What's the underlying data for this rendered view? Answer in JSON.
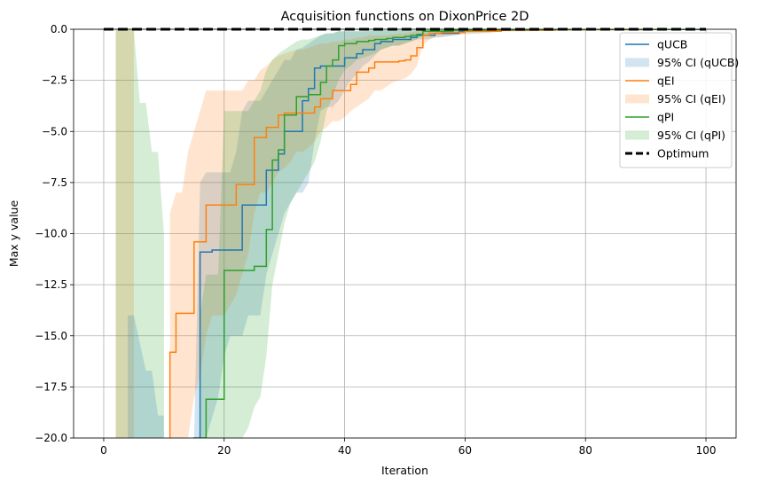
{
  "chart_data": {
    "type": "line",
    "title": "Acquisition functions on DixonPrice 2D",
    "xlabel": "Iteration",
    "ylabel": "Max y value",
    "xlim": [
      -5,
      105
    ],
    "ylim": [
      -20,
      0
    ],
    "xticks": [
      0,
      20,
      40,
      60,
      80,
      100
    ],
    "yticks": [
      -20.0,
      -17.5,
      -15.0,
      -12.5,
      -10.0,
      -7.5,
      -5.0,
      -2.5,
      0.0
    ],
    "ytick_labels": [
      "−20.0",
      "−17.5",
      "−15.0",
      "−12.5",
      "−10.0",
      "−7.5",
      "−5.0",
      "−2.5",
      "0.0"
    ],
    "xtick_labels": [
      "0",
      "20",
      "40",
      "60",
      "80",
      "100"
    ],
    "grid": true,
    "legend_position": "top-right",
    "series": [
      {
        "name": "qUCB",
        "ci_name": "95% CI (qUCB)",
        "color": "#1f77b4",
        "x": [
          15,
          16,
          17,
          18,
          19,
          20,
          21,
          22,
          23,
          24,
          25,
          26,
          27,
          28,
          29,
          30,
          31,
          32,
          33,
          34,
          35,
          36,
          37,
          38,
          39,
          40,
          41,
          42,
          43,
          44,
          45,
          46,
          47,
          48,
          49,
          50,
          51,
          52,
          53,
          54,
          55,
          56,
          57,
          58,
          59,
          60,
          62,
          64,
          66,
          68,
          70,
          72,
          75,
          80,
          85,
          90,
          95,
          99
        ],
        "y": [
          -20,
          -10.9,
          -10.9,
          -10.8,
          -10.8,
          -10.8,
          -10.8,
          -10.8,
          -8.6,
          -8.6,
          -8.6,
          -8.6,
          -6.9,
          -6.9,
          -6.1,
          -5.0,
          -5.0,
          -5.0,
          -3.5,
          -2.9,
          -1.9,
          -1.8,
          -1.8,
          -1.8,
          -1.8,
          -1.4,
          -1.4,
          -1.2,
          -1.0,
          -1.0,
          -0.7,
          -0.6,
          -0.6,
          -0.5,
          -0.5,
          -0.5,
          -0.4,
          -0.3,
          -0.3,
          -0.3,
          -0.2,
          -0.2,
          -0.2,
          -0.2,
          -0.1,
          -0.1,
          -0.1,
          -0.05,
          -0.05,
          -0.05,
          -0.05,
          -0.03,
          -0.02,
          -0.01,
          -0.01,
          -0.01,
          -0.01,
          -0.01
        ],
        "ci_lower": [
          -20,
          -20,
          -20,
          -19,
          -18,
          -16,
          -15,
          -15,
          -15,
          -14,
          -14,
          -14,
          -12,
          -11,
          -10,
          -9,
          -8.5,
          -8,
          -8,
          -7.5,
          -5.5,
          -4,
          -3.8,
          -3.8,
          -3.5,
          -3,
          -2.5,
          -2.2,
          -1.8,
          -1.6,
          -1.3,
          -1.0,
          -0.9,
          -0.8,
          -0.8,
          -0.7,
          -0.6,
          -0.5,
          -0.5,
          -0.5,
          -0.4,
          -0.4,
          -0.35,
          -0.3,
          -0.25,
          -0.2,
          -0.2,
          -0.15,
          -0.1,
          -0.1,
          -0.1,
          -0.08,
          -0.05,
          -0.03,
          -0.02,
          -0.02,
          -0.02,
          -0.02
        ],
        "ci_upper": [
          -20,
          -7.5,
          -7,
          -7,
          -7,
          -7,
          -7,
          -6,
          -4,
          -3.5,
          -3.5,
          -3.5,
          -3,
          -2.5,
          -2.0,
          -1.5,
          -1.5,
          -1.0,
          -0.9,
          -0.7,
          -0.5,
          -0.3,
          -0.2,
          -0.2,
          -0.1,
          -0.1,
          -0.1,
          -0.1,
          -0.1,
          -0.05,
          -0.05,
          -0.05,
          -0.05,
          -0.05,
          -0.05,
          -0.05,
          -0.05,
          -0.05,
          -0.05,
          -0.05,
          -0.03,
          -0.03,
          -0.03,
          -0.03,
          -0.03,
          -0.02,
          -0.02,
          -0.02,
          -0.02,
          -0.02,
          -0.02,
          -0.01,
          -0.01,
          -0.01,
          -0.01,
          -0.01,
          -0.01,
          -0.01
        ]
      },
      {
        "name": "qEI",
        "ci_name": "95% CI (qEI)",
        "color": "#ff7f0e",
        "x": [
          11,
          12,
          13,
          14,
          15,
          16,
          17,
          18,
          19,
          20,
          21,
          22,
          23,
          24,
          25,
          26,
          27,
          28,
          29,
          30,
          31,
          32,
          33,
          34,
          35,
          36,
          37,
          38,
          39,
          40,
          41,
          42,
          43,
          44,
          45,
          46,
          47,
          48,
          49,
          50,
          51,
          52,
          53,
          54,
          55,
          56,
          58,
          60,
          62,
          64,
          66,
          68,
          70,
          75,
          80,
          85,
          90,
          95,
          99
        ],
        "y": [
          -15.8,
          -13.9,
          -13.9,
          -13.9,
          -10.4,
          -10.4,
          -8.6,
          -8.6,
          -8.6,
          -8.6,
          -8.6,
          -7.6,
          -7.6,
          -7.6,
          -5.3,
          -5.3,
          -4.8,
          -4.8,
          -4.2,
          -4.1,
          -4.1,
          -4.1,
          -4.1,
          -4.1,
          -3.8,
          -3.4,
          -3.4,
          -3.0,
          -3.0,
          -3.0,
          -2.7,
          -2.1,
          -2.1,
          -1.9,
          -1.6,
          -1.6,
          -1.6,
          -1.6,
          -1.55,
          -1.5,
          -1.3,
          -0.9,
          -0.3,
          -0.2,
          -0.2,
          -0.15,
          -0.15,
          -0.1,
          -0.1,
          -0.1,
          -0.05,
          -0.05,
          -0.05,
          -0.03,
          -0.02,
          -0.02,
          -0.01,
          -0.01,
          -0.01
        ],
        "ci_lower": [
          -20,
          -20,
          -20,
          -20,
          -18,
          -17,
          -15,
          -14,
          -14,
          -14,
          -13.5,
          -13,
          -12,
          -11,
          -9,
          -8,
          -8,
          -7.5,
          -7,
          -6.8,
          -6.5,
          -6,
          -6,
          -5.8,
          -5.5,
          -5,
          -4.8,
          -4.5,
          -4.5,
          -4.3,
          -4,
          -3.8,
          -3.6,
          -3.4,
          -3,
          -3,
          -2.8,
          -2.6,
          -2.5,
          -2.4,
          -2.2,
          -1.8,
          -0.8,
          -0.5,
          -0.4,
          -0.35,
          -0.3,
          -0.25,
          -0.2,
          -0.2,
          -0.1,
          -0.1,
          -0.1,
          -0.06,
          -0.04,
          -0.03,
          -0.02,
          -0.02,
          -0.02
        ],
        "ci_upper": [
          -9,
          -8,
          -8,
          -6,
          -5,
          -4,
          -3,
          -3,
          -3,
          -3,
          -3,
          -3,
          -3,
          -2.5,
          -2.5,
          -2.0,
          -1.8,
          -1.5,
          -1.3,
          -1.2,
          -1.1,
          -1.0,
          -1.0,
          -0.9,
          -0.8,
          -0.7,
          -0.7,
          -0.6,
          -0.6,
          -0.5,
          -0.5,
          -0.4,
          -0.4,
          -0.3,
          -0.3,
          -0.3,
          -0.3,
          -0.25,
          -0.2,
          -0.2,
          -0.15,
          -0.1,
          -0.05,
          -0.05,
          -0.05,
          -0.05,
          -0.03,
          -0.03,
          -0.02,
          -0.02,
          -0.02,
          -0.02,
          -0.01,
          -0.01,
          -0.01,
          -0.01,
          -0.01,
          -0.01,
          -0.01
        ]
      },
      {
        "name": "qPI",
        "ci_name": "95% CI (qPI)",
        "color": "#2ca02c",
        "x": [
          16,
          17,
          18,
          19,
          20,
          21,
          22,
          23,
          24,
          25,
          26,
          27,
          28,
          29,
          30,
          31,
          32,
          33,
          34,
          35,
          36,
          37,
          38,
          39,
          40,
          41,
          42,
          43,
          44,
          45,
          46,
          47,
          48,
          49,
          50,
          51,
          52,
          53,
          54,
          55,
          56,
          58,
          60,
          62,
          64,
          66,
          68,
          70,
          72,
          75,
          80,
          85,
          90,
          95,
          99
        ],
        "y": [
          -20,
          -18.1,
          -18.1,
          -18.1,
          -11.8,
          -11.8,
          -11.8,
          -11.8,
          -11.8,
          -11.6,
          -11.6,
          -9.8,
          -6.4,
          -5.9,
          -4.2,
          -4.2,
          -3.3,
          -3.3,
          -3.2,
          -3.2,
          -2.6,
          -1.8,
          -1.5,
          -0.8,
          -0.7,
          -0.7,
          -0.6,
          -0.6,
          -0.55,
          -0.5,
          -0.5,
          -0.45,
          -0.4,
          -0.4,
          -0.35,
          -0.3,
          -0.25,
          -0.1,
          -0.1,
          -0.1,
          -0.1,
          -0.05,
          -0.05,
          -0.05,
          -0.03,
          -0.03,
          -0.02,
          -0.02,
          -0.02,
          -0.01,
          -0.01,
          -0.01,
          -0.01,
          -0.01,
          -0.01
        ],
        "ci_lower": [
          -20,
          -20,
          -20,
          -20,
          -20,
          -20,
          -20,
          -20,
          -19.5,
          -18.5,
          -18,
          -16,
          -12.5,
          -11,
          -9.5,
          -8.5,
          -8,
          -7.5,
          -7,
          -6.5,
          -5.5,
          -4,
          -3.3,
          -2.5,
          -2,
          -1.8,
          -1.5,
          -1.4,
          -1.3,
          -1.2,
          -1.0,
          -0.9,
          -0.8,
          -0.8,
          -0.7,
          -0.6,
          -0.5,
          -0.3,
          -0.25,
          -0.2,
          -0.2,
          -0.15,
          -0.1,
          -0.1,
          -0.06,
          -0.05,
          -0.04,
          -0.03,
          -0.03,
          -0.02,
          -0.02,
          -0.02,
          -0.02,
          -0.02,
          -0.02
        ],
        "ci_upper": [
          -14,
          -12,
          -12,
          -12,
          -4,
          -4,
          -4,
          -4,
          -4,
          -3.5,
          -3,
          -2,
          -1.5,
          -1.2,
          -1.0,
          -0.8,
          -0.6,
          -0.5,
          -0.5,
          -0.4,
          -0.3,
          -0.2,
          -0.2,
          -0.1,
          -0.1,
          -0.1,
          -0.1,
          -0.1,
          -0.1,
          -0.05,
          -0.05,
          -0.05,
          -0.05,
          -0.05,
          -0.05,
          -0.05,
          -0.05,
          -0.02,
          -0.02,
          -0.02,
          -0.02,
          -0.01,
          -0.01,
          -0.01,
          -0.01,
          -0.01,
          -0.01,
          -0.01,
          -0.01,
          -0.01,
          -0.01,
          -0.01,
          -0.01,
          -0.01,
          -0.01
        ]
      }
    ],
    "early_bands": [
      {
        "series": "qEI",
        "x": [
          2,
          3,
          4,
          5
        ],
        "lower": [
          -20,
          -20,
          -20,
          -20
        ],
        "upper": [
          0,
          0,
          0,
          0
        ]
      },
      {
        "series": "qPI",
        "x": [
          2,
          3,
          4,
          5,
          6,
          7,
          8,
          9,
          10
        ],
        "lower": [
          -20,
          -20,
          -20,
          -20,
          -20,
          -20,
          -20,
          -20,
          -20
        ],
        "upper": [
          0,
          0,
          0,
          0,
          -3.6,
          -3.6,
          -6,
          -6,
          -10
        ]
      },
      {
        "series": "qUCB",
        "x": [
          4,
          5,
          7,
          8,
          9,
          10
        ],
        "lower": [
          -20,
          -20,
          -20,
          -20,
          -20,
          -20
        ],
        "upper": [
          -14,
          -14,
          -16.7,
          -16.7,
          -18.9,
          -18.9
        ]
      }
    ],
    "optimum": {
      "name": "Optimum",
      "y": 0.0,
      "x_range": [
        0,
        100
      ],
      "color": "#000000"
    }
  }
}
